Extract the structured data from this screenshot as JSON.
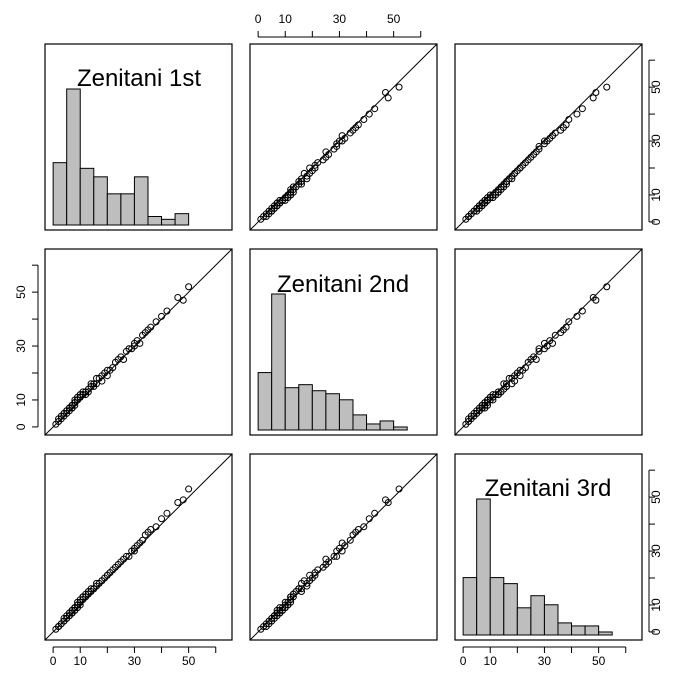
{
  "chart_data": {
    "type": "scatter-matrix",
    "variables": [
      "Zenitani 1st",
      "Zenitani 2nd",
      "Zenitani 3rd"
    ],
    "axis_range": [
      -3,
      66
    ],
    "axis_ticks": [
      0,
      10,
      30,
      50
    ],
    "identity_line": true,
    "histograms": [
      {
        "variable": "Zenitani 1st",
        "bin_edges": [
          0,
          5,
          10,
          15,
          20,
          25,
          30,
          35,
          40,
          45,
          50
        ],
        "counts": [
          22,
          48,
          20,
          17,
          11,
          11,
          17,
          3,
          2,
          4
        ]
      },
      {
        "variable": "Zenitani 2nd",
        "bin_edges": [
          0,
          5,
          10,
          15,
          20,
          25,
          30,
          35,
          40,
          45,
          50,
          55
        ],
        "counts": [
          19,
          45,
          14,
          15,
          13,
          12,
          10,
          5,
          2,
          3,
          1
        ]
      },
      {
        "variable": "Zenitani 3rd",
        "bin_edges": [
          0,
          5,
          10,
          15,
          20,
          25,
          30,
          35,
          40,
          45,
          50,
          55
        ],
        "counts": [
          19,
          45,
          19,
          17,
          9,
          13,
          10,
          4,
          3,
          3,
          1
        ]
      }
    ],
    "points": {
      "Zenitani 1st": [
        1,
        2,
        2,
        3,
        3,
        4,
        4,
        4,
        5,
        5,
        5,
        6,
        6,
        6,
        6,
        7,
        7,
        7,
        7,
        7,
        8,
        8,
        8,
        8,
        8,
        9,
        9,
        9,
        9,
        10,
        10,
        10,
        10,
        11,
        11,
        11,
        12,
        12,
        13,
        13,
        14,
        14,
        15,
        15,
        16,
        16,
        17,
        18,
        18,
        19,
        20,
        20,
        21,
        22,
        23,
        24,
        25,
        26,
        27,
        28,
        29,
        30,
        30,
        31,
        32,
        33,
        34,
        35,
        36,
        38,
        40,
        42,
        46,
        48,
        50
      ],
      "Zenitani 2nd": [
        1,
        2,
        3,
        3,
        4,
        5,
        4,
        5,
        5,
        6,
        6,
        6,
        7,
        7,
        7,
        8,
        8,
        7,
        7,
        8,
        9,
        8,
        9,
        10,
        9,
        10,
        10,
        11,
        10,
        12,
        11,
        11,
        12,
        12,
        13,
        12,
        13,
        12,
        14,
        13,
        15,
        16,
        16,
        15,
        18,
        16,
        18,
        19,
        17,
        20,
        21,
        19,
        21,
        22,
        24,
        25,
        26,
        25,
        28,
        29,
        29,
        31,
        30,
        32,
        31,
        34,
        35,
        36,
        37,
        39,
        41,
        43,
        48,
        47,
        52
      ],
      "Zenitani 3rd": [
        1,
        2,
        2,
        3,
        3,
        4,
        4,
        5,
        5,
        6,
        5,
        6,
        7,
        6,
        7,
        7,
        8,
        7,
        8,
        7,
        8,
        9,
        8,
        9,
        9,
        10,
        9,
        10,
        11,
        11,
        10,
        11,
        12,
        12,
        13,
        13,
        14,
        13,
        15,
        14,
        16,
        15,
        16,
        16,
        17,
        18,
        18,
        19,
        19,
        20,
        21,
        21,
        22,
        23,
        24,
        25,
        26,
        27,
        28,
        28,
        30,
        30,
        31,
        32,
        33,
        34,
        36,
        37,
        38,
        39,
        42,
        44,
        48,
        49,
        53
      ]
    }
  }
}
